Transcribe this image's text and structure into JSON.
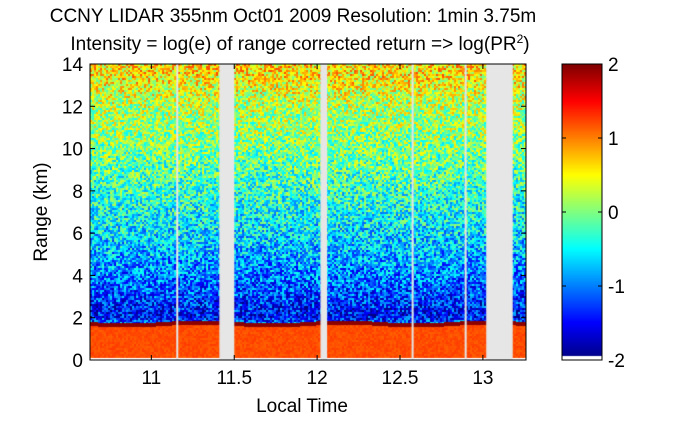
{
  "chart_data": {
    "type": "heatmap",
    "title_line1": "CCNY LIDAR 355nm Oct01 2009 Resolution: 1min 3.75m",
    "title_line2_main": "Intensity = log(e) of range corrected return => log(PR",
    "title_line2_sup": "2",
    "title_line2_end": ")",
    "xlabel": "Local Time",
    "ylabel": "Range (km)",
    "xlim": [
      10.63,
      13.26
    ],
    "ylim": [
      0,
      14
    ],
    "xticks": [
      11,
      11.5,
      12,
      12.5,
      13
    ],
    "xtick_labels": [
      "11",
      "11.5",
      "12",
      "12.5",
      "13"
    ],
    "yticks": [
      0,
      2,
      4,
      6,
      8,
      10,
      12,
      14
    ],
    "ytick_labels": [
      "0",
      "2",
      "4",
      "6",
      "8",
      "10",
      "12",
      "14"
    ],
    "colorbar": {
      "colormap": "jet",
      "clim": [
        -2,
        2
      ],
      "ticks": [
        2,
        1,
        0,
        -1,
        -2
      ],
      "tick_labels": [
        "2",
        "1",
        "0",
        "-1",
        "-2"
      ]
    },
    "boundary_layer_top_km": 1.7,
    "near_ground_intensity": 1.2,
    "intensity_profile": [
      {
        "range_km": 0.2,
        "value": 1.2
      },
      {
        "range_km": 2,
        "value": -1.5
      },
      {
        "range_km": 4,
        "value": -1.0
      },
      {
        "range_km": 6,
        "value": -0.6
      },
      {
        "range_km": 8,
        "value": -0.3
      },
      {
        "range_km": 10,
        "value": 0.0
      },
      {
        "range_km": 12,
        "value": 0.2
      },
      {
        "range_km": 13.5,
        "value": 0.6
      }
    ],
    "data_gaps_local_time": [
      [
        11.15,
        11.16
      ],
      [
        11.41,
        11.5
      ],
      [
        12.02,
        12.06
      ],
      [
        12.57,
        12.58
      ],
      [
        12.89,
        12.9
      ],
      [
        13.02,
        13.18
      ]
    ],
    "grid": false
  }
}
